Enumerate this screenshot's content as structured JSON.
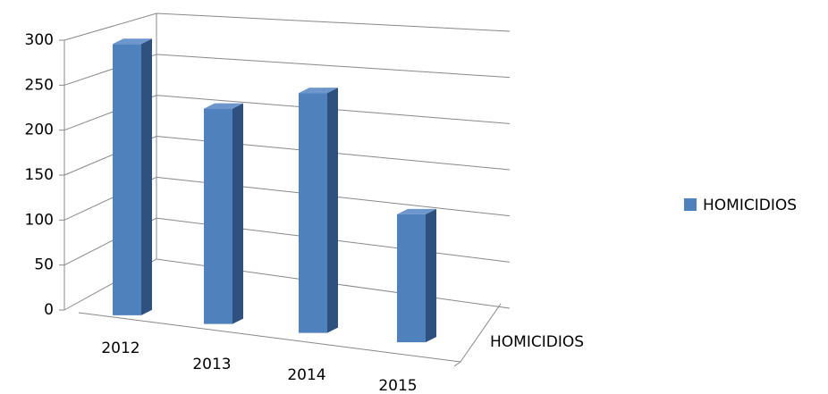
{
  "chart_data": {
    "type": "bar3d",
    "categories": [
      "2012",
      "2013",
      "2014",
      "2015"
    ],
    "series": [
      {
        "name": "HOMICIDIOS",
        "color": "#4f81bd",
        "values": [
          297,
          230,
          250,
          130
        ]
      }
    ],
    "ylim": [
      0,
      300
    ],
    "yticks": [
      0,
      50,
      100,
      150,
      200,
      250,
      300
    ],
    "grid": true,
    "legend": "right"
  }
}
